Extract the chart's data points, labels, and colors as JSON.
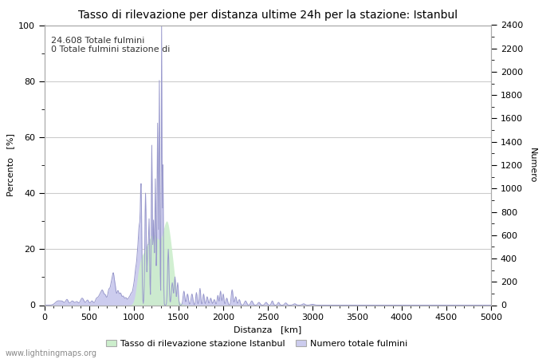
{
  "title": "Tasso di rilevazione per distanza ultime 24h per la stazione: Istanbul",
  "xlabel": "Distanza   [km]",
  "ylabel_left": "Percento   [%]",
  "ylabel_right": "Numero",
  "annotation_lines": [
    "24.608 Totale fulmini",
    "0 Totale fulmini stazione di"
  ],
  "xlim": [
    0,
    5000
  ],
  "ylim_left": [
    0,
    100
  ],
  "ylim_right": [
    0,
    2400
  ],
  "xticks": [
    0,
    500,
    1000,
    1500,
    2000,
    2500,
    3000,
    3500,
    4000,
    4500,
    5000
  ],
  "yticks_left": [
    0,
    20,
    40,
    60,
    80,
    100
  ],
  "yticks_right": [
    0,
    200,
    400,
    600,
    800,
    1000,
    1200,
    1400,
    1600,
    1800,
    2000,
    2200,
    2400
  ],
  "legend_label_green": "Tasso di rilevazione stazione Istanbul",
  "legend_label_blue": "Numero totale fulmini",
  "line_color": "#9999cc",
  "fill_blue_color": "#ccccee",
  "fill_green_color": "#cceecc",
  "background_color": "#ffffff",
  "grid_color": "#cccccc",
  "watermark": "www.lightningmaps.org",
  "title_fontsize": 10,
  "axis_fontsize": 8,
  "tick_fontsize": 8,
  "annotation_fontsize": 8
}
